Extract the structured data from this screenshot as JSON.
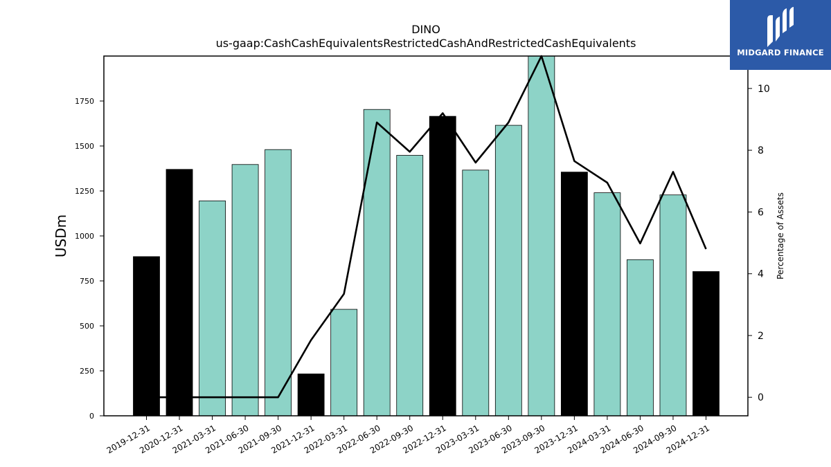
{
  "logo": {
    "text": "MIDGARD FINANCE",
    "background": "#2c5aa8"
  },
  "chart_data": {
    "type": "bar",
    "title": "DINO",
    "subtitle": "us-gaap:CashCashEquivalentsRestrictedCashAndRestrictedCashEquivalents",
    "ylabel": "USDm",
    "y2label": "Percentage of Assets",
    "ylim": [
      0,
      2000
    ],
    "y2lim": [
      -0.6,
      11.05
    ],
    "yticks": [
      0,
      250,
      500,
      750,
      1000,
      1250,
      1500,
      1750
    ],
    "y2ticks": [
      0,
      2,
      4,
      6,
      8,
      10
    ],
    "grid": false,
    "categories": [
      "2019-12-31",
      "2020-12-31",
      "2021-03-31",
      "2021-06-30",
      "2021-09-30",
      "2021-12-31",
      "2022-03-31",
      "2022-06-30",
      "2022-09-30",
      "2022-12-31",
      "2023-03-31",
      "2023-06-30",
      "2023-09-30",
      "2023-12-31",
      "2024-03-31",
      "2024-06-30",
      "2024-09-30",
      "2024-12-31"
    ],
    "series": [
      {
        "type": "bar",
        "values": [
          885,
          1370,
          1195,
          1397,
          1480,
          233,
          592,
          1703,
          1448,
          1665,
          1366,
          1615,
          2000,
          1355,
          1240,
          868,
          1228,
          802
        ],
        "colors": [
          "#000000",
          "#000000",
          "#8dd3c7",
          "#8dd3c7",
          "#8dd3c7",
          "#000000",
          "#8dd3c7",
          "#8dd3c7",
          "#8dd3c7",
          "#000000",
          "#8dd3c7",
          "#8dd3c7",
          "#8dd3c7",
          "#000000",
          "#8dd3c7",
          "#8dd3c7",
          "#8dd3c7",
          "#000000"
        ]
      },
      {
        "type": "line",
        "axis": "right",
        "color": "#000000",
        "values": [
          0.0,
          0.0,
          0.0,
          0.0,
          0.0,
          1.85,
          3.35,
          8.9,
          7.95,
          9.2,
          7.6,
          8.9,
          11.05,
          7.65,
          6.95,
          4.98,
          7.3,
          4.8
        ]
      }
    ]
  }
}
